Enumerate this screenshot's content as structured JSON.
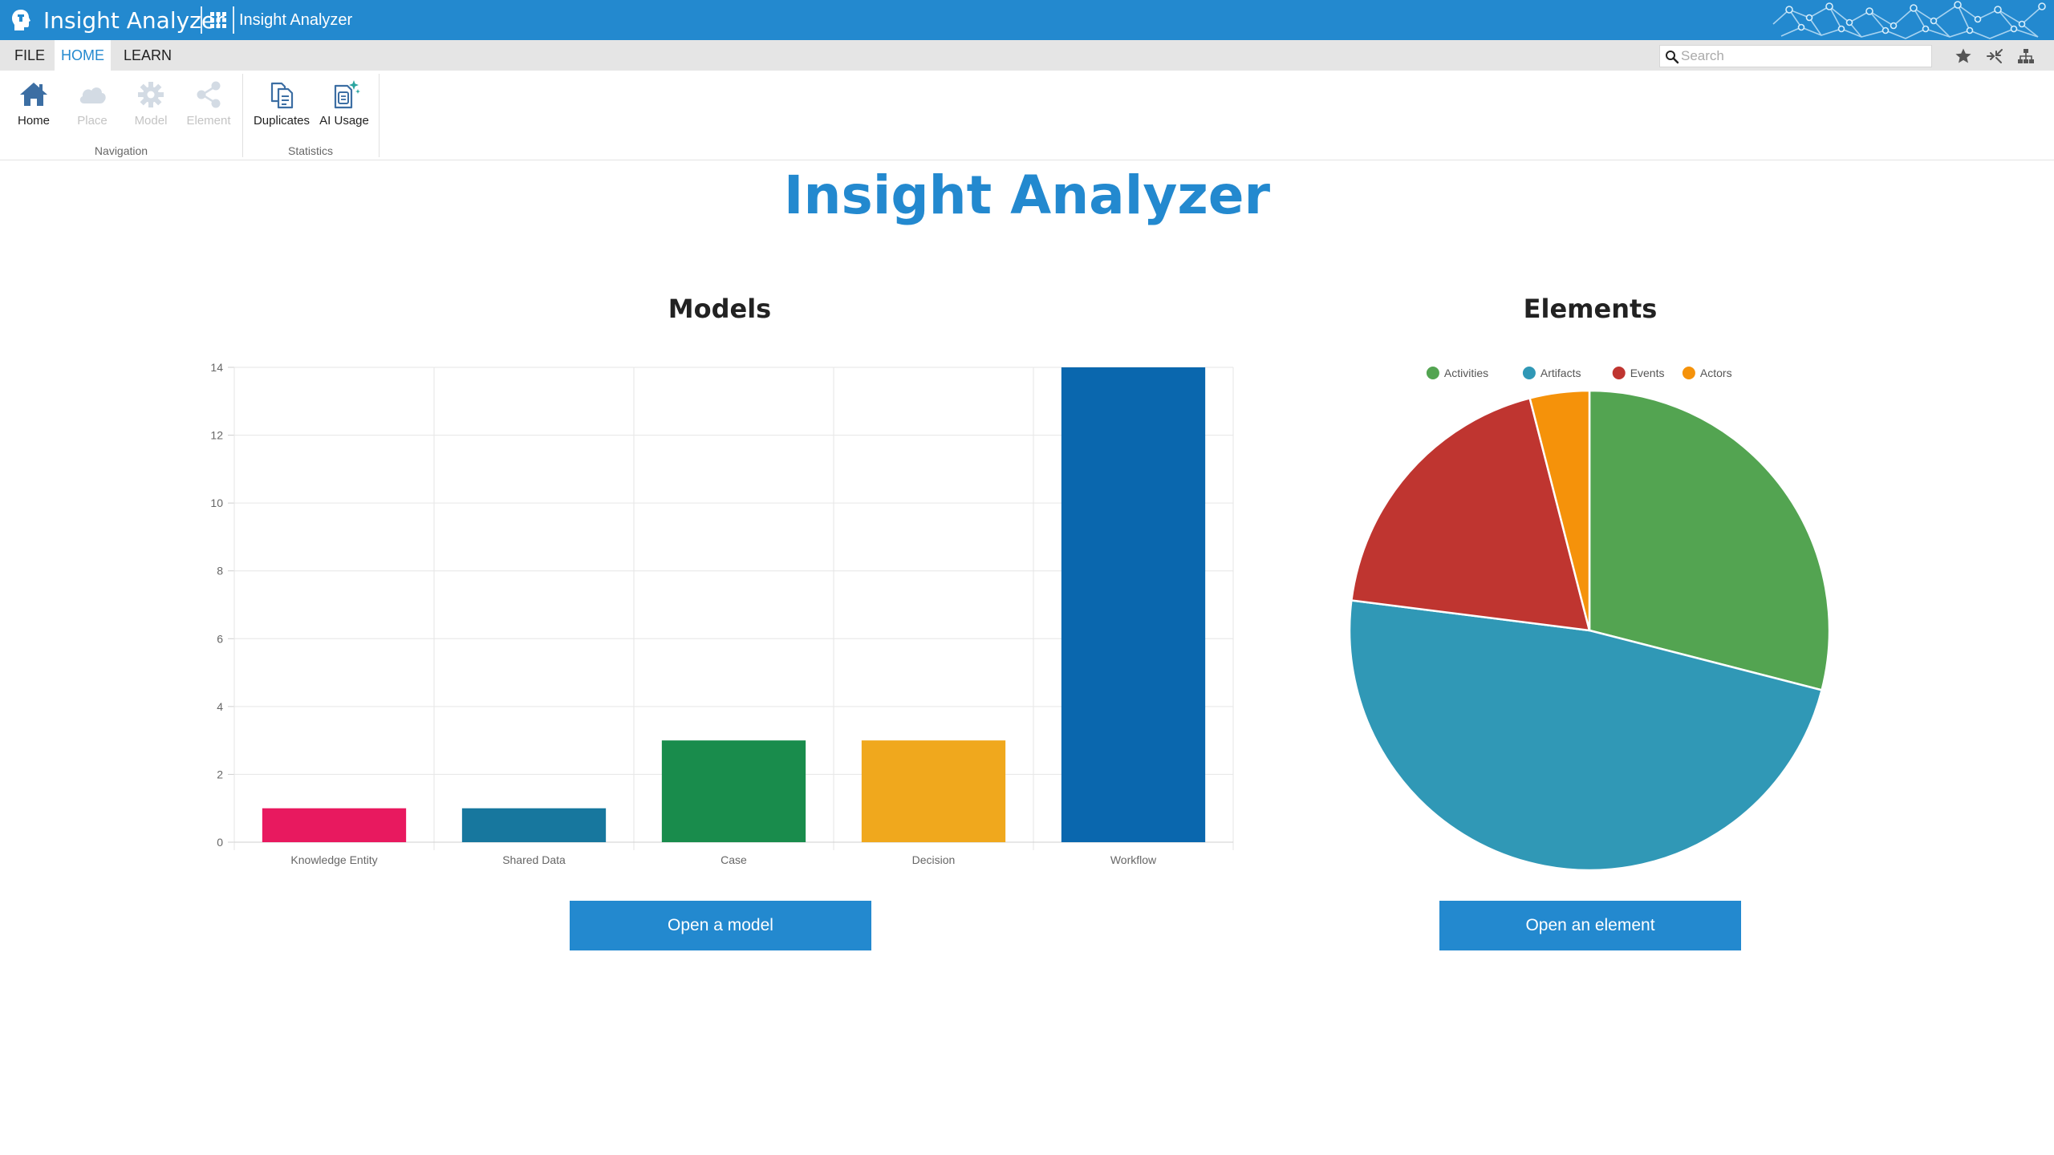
{
  "titlebar": {
    "app_name": "Insight Analyzer",
    "workspace_name": "Insight Analyzer",
    "bar_color": "#2389cf"
  },
  "menu": {
    "tabs": [
      {
        "label": "FILE",
        "active": false
      },
      {
        "label": "HOME",
        "active": true
      },
      {
        "label": "LEARN",
        "active": false
      }
    ],
    "search_placeholder": "Search",
    "right_icons": [
      "star-icon",
      "collapse-arrows-icon",
      "hierarchy-icon"
    ]
  },
  "ribbon": {
    "groups": [
      {
        "label": "Navigation",
        "buttons": [
          {
            "label": "Home",
            "icon": "home-icon",
            "enabled": true
          },
          {
            "label": "Place",
            "icon": "cloud-icon",
            "enabled": false
          },
          {
            "label": "Model",
            "icon": "gear-icon",
            "enabled": false
          },
          {
            "label": "Element",
            "icon": "share-icon",
            "enabled": false
          }
        ]
      },
      {
        "label": "Statistics",
        "buttons": [
          {
            "label": "Duplicates",
            "icon": "duplicate-files-icon",
            "enabled": true
          },
          {
            "label": "AI Usage",
            "icon": "ai-document-icon",
            "enabled": true
          }
        ]
      }
    ]
  },
  "page": {
    "title": "Insight Analyzer",
    "models_title": "Models",
    "elements_title": "Elements",
    "open_model_label": "Open a model",
    "open_element_label": "Open an element"
  },
  "chart_data": [
    {
      "type": "bar",
      "title": "Models",
      "categories": [
        "Knowledge Entity",
        "Shared Data",
        "Case",
        "Decision",
        "Workflow"
      ],
      "values": [
        1,
        1,
        3,
        3,
        14
      ],
      "colors": [
        "#e8195f",
        "#17779e",
        "#198c4c",
        "#f0a81d",
        "#0a67ae"
      ],
      "yticks": [
        0,
        2,
        4,
        6,
        8,
        10,
        12,
        14
      ],
      "ylim": [
        0,
        14
      ],
      "grid": true,
      "legend": "none"
    },
    {
      "type": "pie",
      "title": "Elements",
      "labels": [
        "Activities",
        "Artifacts",
        "Events",
        "Actors"
      ],
      "values": [
        29,
        48,
        19,
        4
      ],
      "colors": [
        "#53a451",
        "#3098b6",
        "#bf3530",
        "#f5920a"
      ],
      "legend": "top"
    }
  ]
}
